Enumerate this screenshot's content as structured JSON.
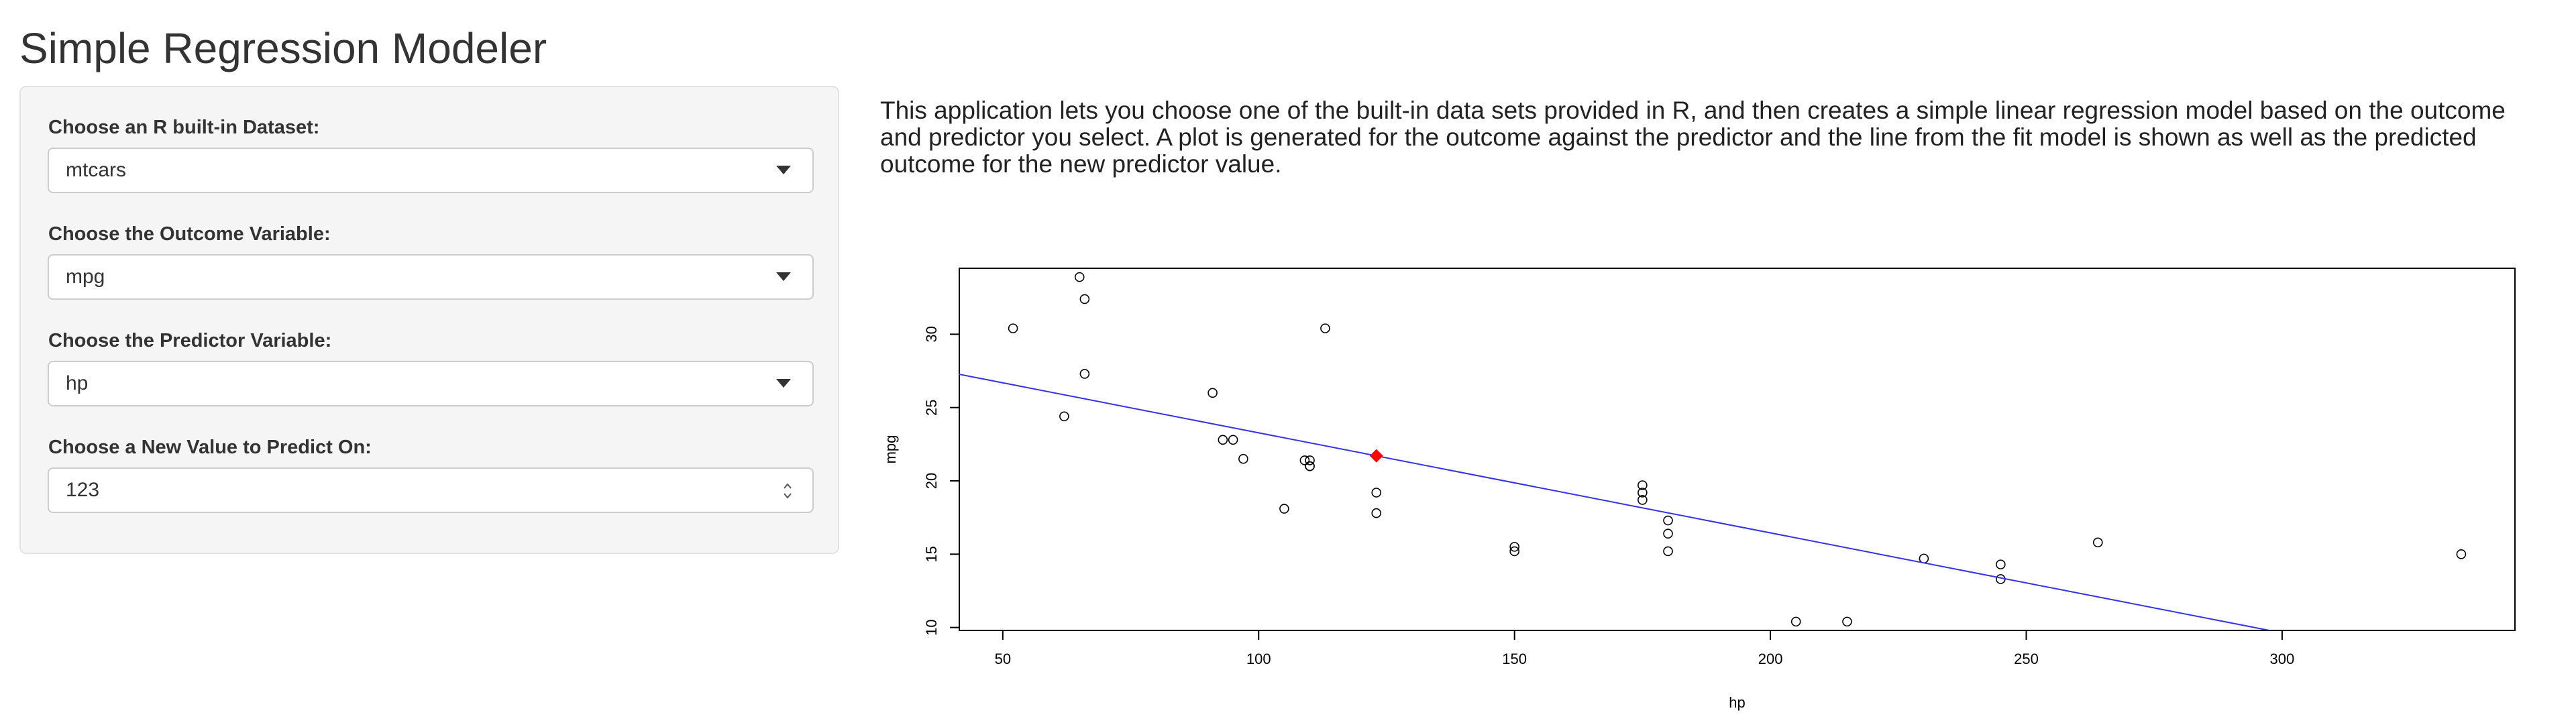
{
  "app": {
    "title": "Simple Regression Modeler",
    "description": "This application lets you choose one of the built-in data sets provided in R, and then creates a simple linear regression model based on the outcome and predictor you select. A plot is generated for the outcome against the predictor and the line from the fit model is shown as well as the predicted outcome for the new predictor value."
  },
  "sidebar": {
    "dataset": {
      "label": "Choose an R built-in Dataset:",
      "value": "mtcars"
    },
    "outcome": {
      "label": "Choose the Outcome Variable:",
      "value": "mpg"
    },
    "predictor": {
      "label": "Choose the Predictor Variable:",
      "value": "hp"
    },
    "new_value": {
      "label": "Choose a New Value to Predict On:",
      "value": "123"
    }
  },
  "icons": {
    "dropdown": "chevron-down-icon",
    "stepper": "number-spinner-icon"
  },
  "colors": {
    "fit_line": "#3333ee",
    "prediction_point": "#ff0000",
    "points": "#000000"
  },
  "chart_data": {
    "type": "scatter",
    "xlabel": "hp",
    "ylabel": "mpg",
    "xlim": [
      41.5,
      345.5
    ],
    "ylim": [
      9.8,
      34.5
    ],
    "x_ticks": [
      50,
      100,
      150,
      200,
      250,
      300
    ],
    "y_ticks": [
      10,
      15,
      20,
      25,
      30
    ],
    "grid": false,
    "points": [
      {
        "x": 110,
        "y": 21.0
      },
      {
        "x": 110,
        "y": 21.0
      },
      {
        "x": 93,
        "y": 22.8
      },
      {
        "x": 110,
        "y": 21.4
      },
      {
        "x": 175,
        "y": 18.7
      },
      {
        "x": 105,
        "y": 18.1
      },
      {
        "x": 245,
        "y": 14.3
      },
      {
        "x": 62,
        "y": 24.4
      },
      {
        "x": 95,
        "y": 22.8
      },
      {
        "x": 123,
        "y": 19.2
      },
      {
        "x": 123,
        "y": 17.8
      },
      {
        "x": 180,
        "y": 16.4
      },
      {
        "x": 180,
        "y": 17.3
      },
      {
        "x": 180,
        "y": 15.2
      },
      {
        "x": 205,
        "y": 10.4
      },
      {
        "x": 215,
        "y": 10.4
      },
      {
        "x": 230,
        "y": 14.7
      },
      {
        "x": 66,
        "y": 32.4
      },
      {
        "x": 52,
        "y": 30.4
      },
      {
        "x": 65,
        "y": 33.9
      },
      {
        "x": 97,
        "y": 21.5
      },
      {
        "x": 150,
        "y": 15.5
      },
      {
        "x": 150,
        "y": 15.2
      },
      {
        "x": 245,
        "y": 13.3
      },
      {
        "x": 175,
        "y": 19.2
      },
      {
        "x": 66,
        "y": 27.3
      },
      {
        "x": 91,
        "y": 26.0
      },
      {
        "x": 113,
        "y": 30.4
      },
      {
        "x": 264,
        "y": 15.8
      },
      {
        "x": 175,
        "y": 19.7
      },
      {
        "x": 335,
        "y": 15.0
      },
      {
        "x": 109,
        "y": 21.4
      }
    ],
    "fit_line": {
      "intercept": 30.099,
      "slope": -0.06823
    },
    "prediction": {
      "x": 123,
      "y": 21.71
    }
  }
}
